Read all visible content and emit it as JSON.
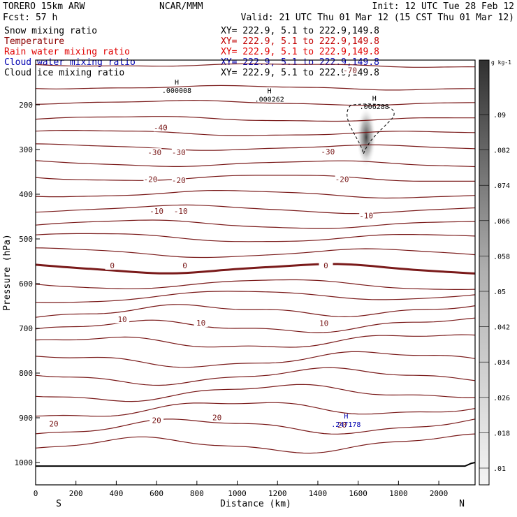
{
  "header": {
    "model": "TORERO   15km ARW",
    "center": "NCAR/MMM",
    "init": "Init: 12 UTC Tue 28 Feb 12",
    "fcst": "Fcst:   57 h",
    "valid": "Valid: 21 UTC Thu 01 Mar 12 (15 CST Thu 01 Mar 12)"
  },
  "legend": [
    {
      "name": "Snow mixing ratio",
      "xy": "XY= 222.9,  5.1 to 222.9,149.8",
      "color": "#000000"
    },
    {
      "name": "Temperature",
      "xy": "XY= 222.9,  5.1 to 222.9,149.8",
      "color": "#8b0000"
    },
    {
      "name": "Rain water mixing ratio",
      "xy": "XY= 222.9,  5.1 to 222.9,149.8",
      "color": "#e00000"
    },
    {
      "name": "Cloud water mixing ratio",
      "xy": "XY= 222.9,  5.1 to 222.9,149.8",
      "color": "#0000b0"
    },
    {
      "name": "Cloud ice mixing ratio",
      "xy": "XY= 222.9,  5.1 to 222.9,149.8",
      "color": "#000000"
    }
  ],
  "chart_data": {
    "type": "contour",
    "xlabel": "Distance (km)",
    "ylabel": "Pressure (hPa)",
    "xlim": [
      0,
      2180
    ],
    "ylim": [
      100,
      1050
    ],
    "x_ticks": [
      0,
      200,
      400,
      600,
      800,
      1000,
      1200,
      1400,
      1600,
      1800,
      2000
    ],
    "y_ticks": [
      200,
      300,
      400,
      500,
      600,
      700,
      800,
      900,
      1000
    ],
    "x_end_labels": {
      "left": "S",
      "right": "N"
    },
    "temperature_labels": [
      {
        "text": "-70",
        "x": 1560,
        "p": 124
      },
      {
        "text": "-40",
        "x": 620,
        "p": 252
      },
      {
        "text": "-30",
        "x": 590,
        "p": 308
      },
      {
        "text": "-30",
        "x": 710,
        "p": 308
      },
      {
        "text": "-30",
        "x": 1450,
        "p": 306
      },
      {
        "text": "-20",
        "x": 570,
        "p": 368
      },
      {
        "text": "-20",
        "x": 710,
        "p": 370
      },
      {
        "text": "-20",
        "x": 1520,
        "p": 368
      },
      {
        "text": "-10",
        "x": 600,
        "p": 439
      },
      {
        "text": "-10",
        "x": 720,
        "p": 439
      },
      {
        "text": "-10",
        "x": 1640,
        "p": 449
      },
      {
        "text": "0",
        "x": 380,
        "p": 561
      },
      {
        "text": "0",
        "x": 740,
        "p": 561
      },
      {
        "text": "0",
        "x": 1440,
        "p": 561
      },
      {
        "text": "10",
        "x": 430,
        "p": 681
      },
      {
        "text": "10",
        "x": 820,
        "p": 689
      },
      {
        "text": "10",
        "x": 1430,
        "p": 690
      },
      {
        "text": "20",
        "x": 90,
        "p": 915
      },
      {
        "text": "20",
        "x": 600,
        "p": 907
      },
      {
        "text": "20",
        "x": 900,
        "p": 901
      },
      {
        "text": "20",
        "x": 1520,
        "p": 917
      }
    ],
    "maxima_labels": [
      {
        "text": ".000008",
        "x": 700,
        "p": 170,
        "color": "#000000"
      },
      {
        "text": ".000262",
        "x": 1160,
        "p": 190,
        "color": "#000000"
      },
      {
        "text": ".006288",
        "x": 1680,
        "p": 206,
        "color": "#000000"
      },
      {
        "text": ".247178",
        "x": 1540,
        "p": 917,
        "color": "#0000b0"
      }
    ],
    "shading_peak": {
      "x": 1640,
      "p": 260
    },
    "colorbar": {
      "unit": "g kg-1",
      "ticks": [
        ".01",
        ".018",
        ".026",
        ".034",
        ".042",
        ".05",
        ".058",
        ".066",
        ".074",
        ".082",
        ".09"
      ]
    },
    "grid": false
  }
}
